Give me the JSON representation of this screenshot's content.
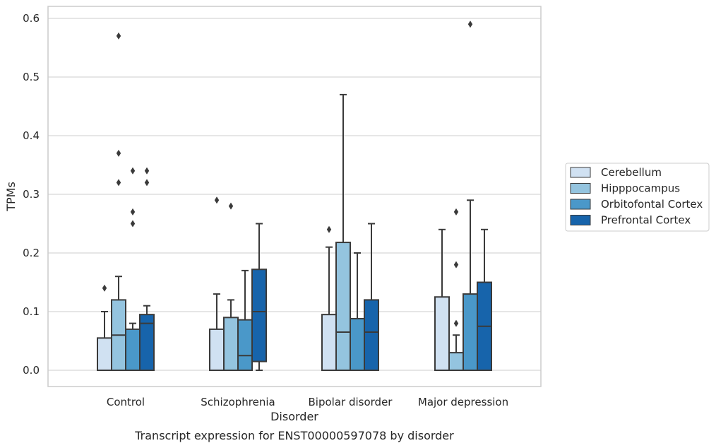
{
  "caption": "Transcript expression for ENST00000597078 by disorder",
  "chart_data": {
    "type": "box",
    "xlabel": "Disorder",
    "ylabel": "TPMs",
    "ylim": [
      -0.03,
      0.62
    ],
    "yticks": [
      0.0,
      0.1,
      0.2,
      0.3,
      0.4,
      0.5,
      0.6
    ],
    "ytick_labels": [
      "0.0",
      "0.1",
      "0.2",
      "0.3",
      "0.4",
      "0.5",
      "0.6"
    ],
    "grid": true,
    "legend_position": "right",
    "categories": [
      "Control",
      "Schizophrenia",
      "Bipolar disorder",
      "Major depression"
    ],
    "series": [
      {
        "name": "Cerebellum",
        "color": "#d0e1f2",
        "boxes": [
          {
            "min": 0.0,
            "q1": 0.0,
            "median": 0.0,
            "q3": 0.055,
            "max": 0.1,
            "outliers": [
              0.14
            ]
          },
          {
            "min": 0.0,
            "q1": 0.0,
            "median": 0.0,
            "q3": 0.07,
            "max": 0.13,
            "outliers": [
              0.29
            ]
          },
          {
            "min": 0.0,
            "q1": 0.0,
            "median": 0.0,
            "q3": 0.095,
            "max": 0.21,
            "outliers": [
              0.24
            ]
          },
          {
            "min": 0.0,
            "q1": 0.0,
            "median": 0.0,
            "q3": 0.125,
            "max": 0.24,
            "outliers": []
          }
        ]
      },
      {
        "name": "Hipppocampus",
        "color": "#94c4df",
        "boxes": [
          {
            "min": 0.0,
            "q1": 0.0,
            "median": 0.06,
            "q3": 0.12,
            "max": 0.16,
            "outliers": [
              0.57,
              0.37,
              0.32
            ]
          },
          {
            "min": 0.0,
            "q1": 0.0,
            "median": 0.0,
            "q3": 0.09,
            "max": 0.12,
            "outliers": [
              0.28
            ]
          },
          {
            "min": 0.0,
            "q1": 0.0,
            "median": 0.065,
            "q3": 0.218,
            "max": 0.47,
            "outliers": []
          },
          {
            "min": 0.0,
            "q1": 0.0,
            "median": 0.0,
            "q3": 0.03,
            "max": 0.06,
            "outliers": [
              0.08,
              0.18,
              0.27
            ]
          }
        ]
      },
      {
        "name": "Orbitofontal Cortex",
        "color": "#4a98c9",
        "boxes": [
          {
            "min": 0.0,
            "q1": 0.0,
            "median": 0.0,
            "q3": 0.07,
            "max": 0.08,
            "outliers": [
              0.34,
              0.27,
              0.25
            ]
          },
          {
            "min": 0.0,
            "q1": 0.0,
            "median": 0.025,
            "q3": 0.086,
            "max": 0.17,
            "outliers": []
          },
          {
            "min": 0.0,
            "q1": 0.0,
            "median": 0.0,
            "q3": 0.088,
            "max": 0.2,
            "outliers": []
          },
          {
            "min": 0.0,
            "q1": 0.0,
            "median": 0.0,
            "q3": 0.13,
            "max": 0.29,
            "outliers": [
              0.59
            ]
          }
        ]
      },
      {
        "name": "Prefrontal Cortex",
        "color": "#1764ab",
        "boxes": [
          {
            "min": 0.0,
            "q1": 0.0,
            "median": 0.08,
            "q3": 0.095,
            "max": 0.11,
            "outliers": [
              0.34,
              0.32
            ]
          },
          {
            "min": 0.0,
            "q1": 0.015,
            "median": 0.1,
            "q3": 0.172,
            "max": 0.25,
            "outliers": []
          },
          {
            "min": 0.0,
            "q1": 0.0,
            "median": 0.065,
            "q3": 0.12,
            "max": 0.25,
            "outliers": []
          },
          {
            "min": 0.0,
            "q1": 0.0,
            "median": 0.075,
            "q3": 0.15,
            "max": 0.24,
            "outliers": []
          }
        ]
      }
    ]
  }
}
